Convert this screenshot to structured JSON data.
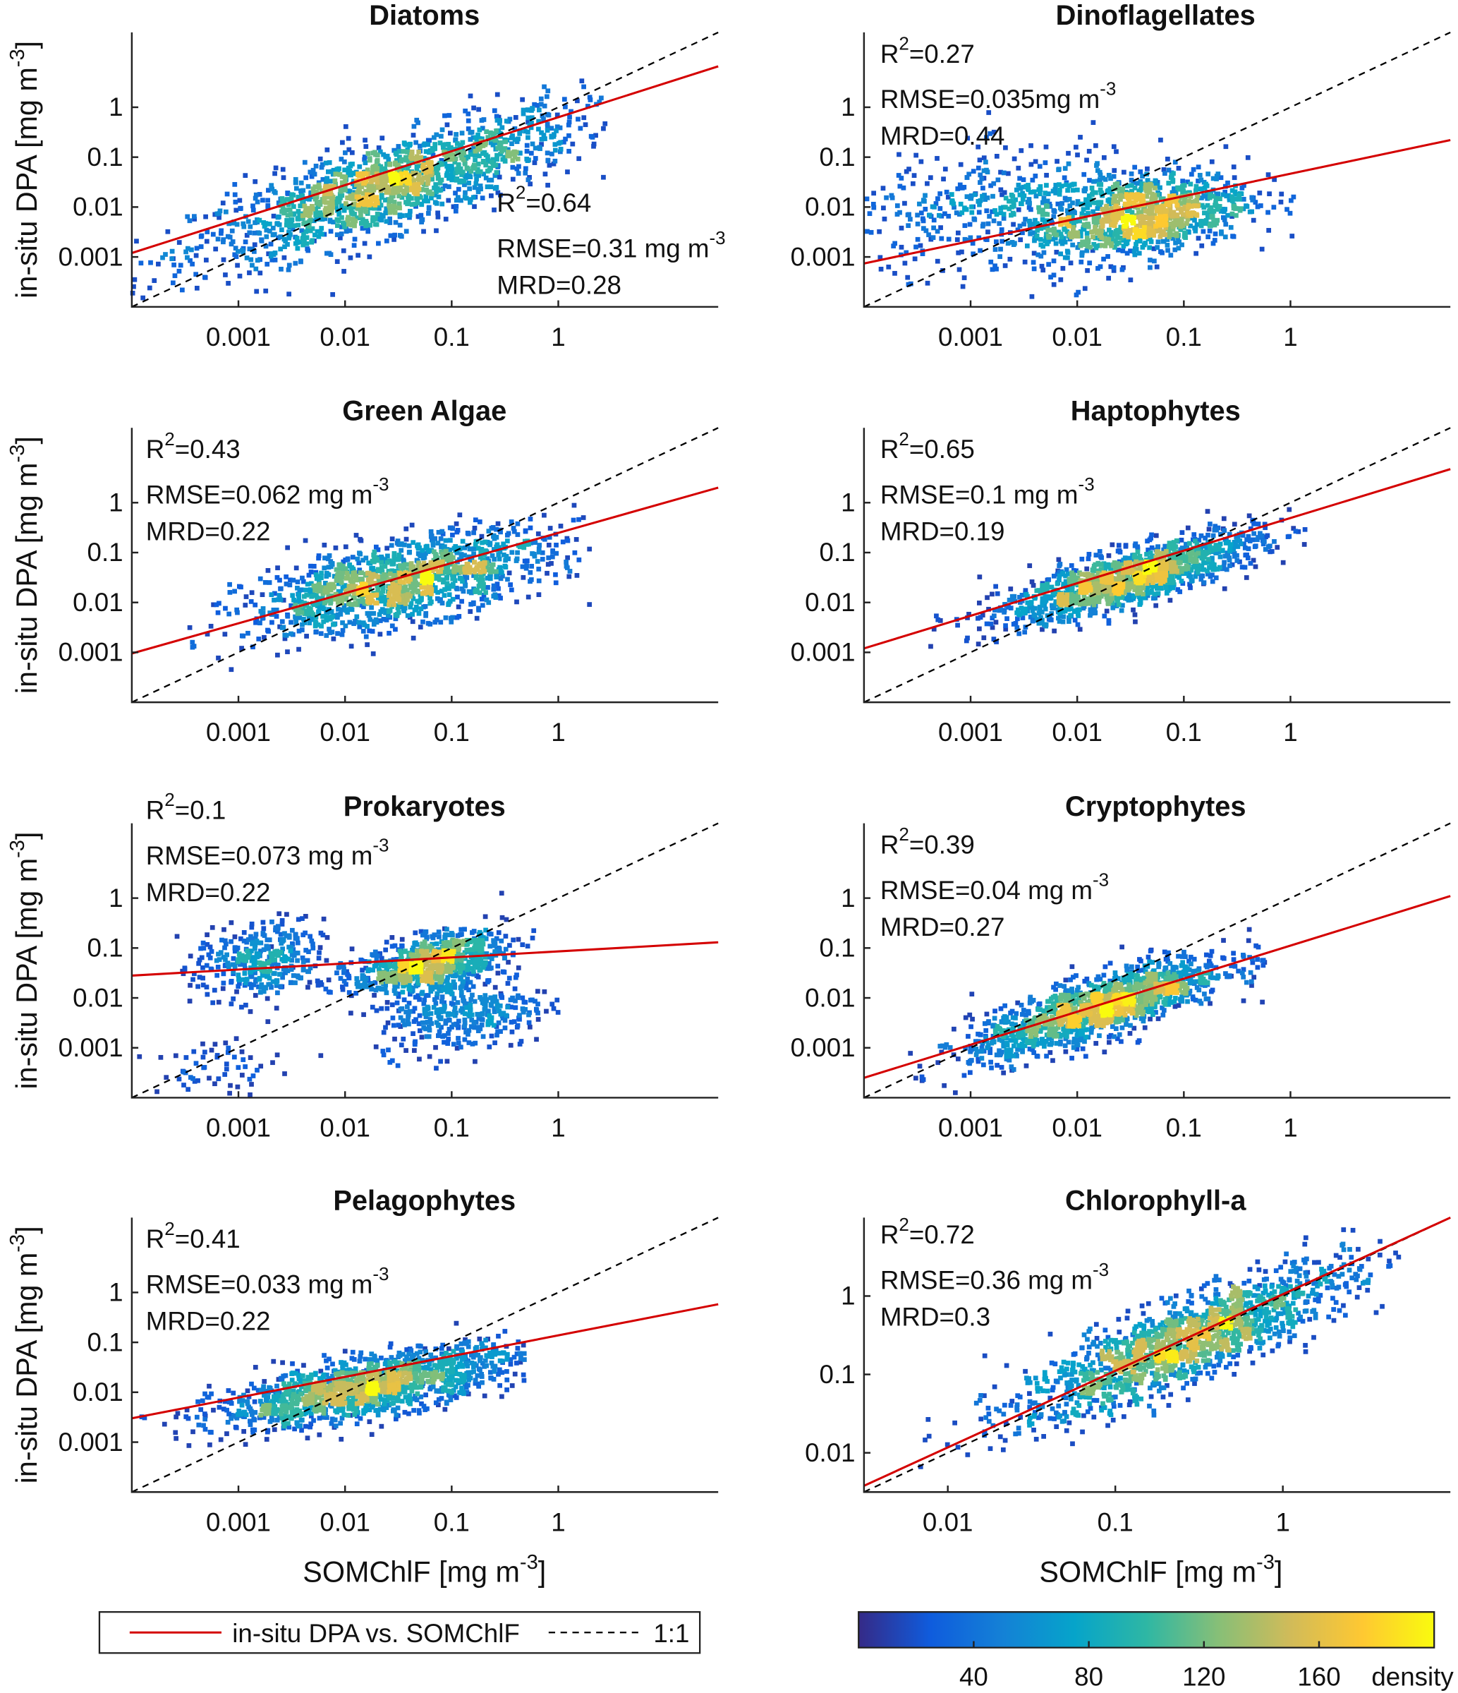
{
  "chart_data": {
    "type": "scatter",
    "panels": [
      {
        "title": "Diatoms",
        "r2": "0.64",
        "rmse": "0.31 mg m",
        "mrd": "0.28",
        "xlim": [
          0.0001,
          31.6
        ],
        "ylim": [
          0.0001,
          31.6
        ],
        "xticks": [
          "0.001",
          "0.01",
          "0.1",
          "1"
        ],
        "yticks": [
          "0.001",
          "0.01",
          "0.1",
          "1"
        ],
        "fit_line": {
          "x": [
            0.0001,
            31.6
          ],
          "y": [
            0.0012,
            6.6
          ]
        },
        "ylabel": "in-situ DPA [mg m",
        "xlabel": ""
      },
      {
        "title": "Dinoflagellates",
        "r2": "0.27",
        "rmse": "0.035mg m",
        "mrd": "0.44",
        "xlim": [
          0.0001,
          31.6
        ],
        "ylim": [
          0.0001,
          31.6
        ],
        "xticks": [
          "0.001",
          "0.01",
          "0.1",
          "1"
        ],
        "yticks": [
          "0.001",
          "0.01",
          "0.1",
          "1"
        ],
        "fit_line": {
          "x": [
            0.0001,
            31.6
          ],
          "y": [
            0.00074,
            0.22
          ]
        },
        "ylabel": "",
        "xlabel": ""
      },
      {
        "title": "Green Algae",
        "r2": "0.43",
        "rmse": "0.062 mg m",
        "mrd": "0.22",
        "xlim": [
          0.0001,
          31.6
        ],
        "ylim": [
          0.0001,
          31.6
        ],
        "xticks": [
          "0.001",
          "0.01",
          "0.1",
          "1"
        ],
        "yticks": [
          "0.001",
          "0.01",
          "0.1",
          "1"
        ],
        "fit_line": {
          "x": [
            0.0001,
            31.6
          ],
          "y": [
            0.00095,
            2.0
          ]
        },
        "ylabel": "in-situ DPA [mg m",
        "xlabel": ""
      },
      {
        "title": "Haptophytes",
        "r2": "0.65",
        "rmse": "0.1 mg m",
        "mrd": "0.19",
        "xlim": [
          0.0001,
          31.6
        ],
        "ylim": [
          0.0001,
          31.6
        ],
        "xticks": [
          "0.001",
          "0.01",
          "0.1",
          "1"
        ],
        "yticks": [
          "0.001",
          "0.01",
          "0.1",
          "1"
        ],
        "fit_line": {
          "x": [
            0.0001,
            31.6
          ],
          "y": [
            0.0012,
            4.7
          ]
        },
        "ylabel": "",
        "xlabel": ""
      },
      {
        "title": "Prokaryotes",
        "r2": "0.1",
        "rmse": "0.073 mg m",
        "mrd": "0.22",
        "xlim": [
          0.0001,
          31.6
        ],
        "ylim": [
          0.0001,
          31.6
        ],
        "xticks": [
          "0.001",
          "0.01",
          "0.1",
          "1"
        ],
        "yticks": [
          "0.001",
          "0.01",
          "0.1",
          "1"
        ],
        "fit_line": {
          "x": [
            0.0001,
            31.6
          ],
          "y": [
            0.028,
            0.13
          ]
        },
        "ylabel": "in-situ DPA [mg m",
        "xlabel": ""
      },
      {
        "title": "Cryptophytes",
        "r2": "0.39",
        "rmse": "0.04 mg m",
        "mrd": "0.27",
        "xlim": [
          0.0001,
          31.6
        ],
        "ylim": [
          0.0001,
          31.6
        ],
        "xticks": [
          "0.001",
          "0.01",
          "0.1",
          "1"
        ],
        "yticks": [
          "0.001",
          "0.01",
          "0.1",
          "1"
        ],
        "fit_line": {
          "x": [
            0.0001,
            31.6
          ],
          "y": [
            0.00025,
            1.1
          ]
        },
        "ylabel": "",
        "xlabel": ""
      },
      {
        "title": "Pelagophytes",
        "r2": "0.41",
        "rmse": "0.033 mg m",
        "mrd": "0.22",
        "xlim": [
          0.0001,
          31.6
        ],
        "ylim": [
          0.0001,
          31.6
        ],
        "xticks": [
          "0.001",
          "0.01",
          "0.1",
          "1"
        ],
        "yticks": [
          "0.001",
          "0.01",
          "0.1",
          "1"
        ],
        "fit_line": {
          "x": [
            0.0001,
            31.6
          ],
          "y": [
            0.003,
            0.58
          ]
        },
        "ylabel": "in-situ DPA [mg m",
        "xlabel": "SOMChlF [mg m"
      },
      {
        "title": "Chlorophyll-a",
        "r2": "0.72",
        "rmse": "0.36 mg m",
        "mrd": "0.3",
        "xlim": [
          0.00316,
          10
        ],
        "ylim": [
          0.00316,
          10
        ],
        "xticks": [
          "0.01",
          "0.1",
          "1"
        ],
        "yticks": [
          "0.01",
          "0.1",
          "1"
        ],
        "fit_line": {
          "x": [
            0.00316,
            10
          ],
          "y": [
            0.0038,
            10
          ]
        },
        "ylabel": "",
        "xlabel": "SOMChlF [mg m"
      }
    ],
    "unit_exponent": "-3",
    "r2_label": "R",
    "r2_sup": "2",
    "rmse_prefix": "RMSE=",
    "mrd_prefix": "MRD=",
    "scale": "log-log",
    "grid": false,
    "legend": {
      "placement": "bottom-left",
      "entries": [
        {
          "label": "in-situ DPA vs. SOMChlF",
          "color": "#d40000",
          "style": "solid"
        },
        {
          "label": "1:1",
          "color": "#000000",
          "style": "dashed"
        }
      ]
    },
    "colorbar": {
      "label": "density",
      "range": [
        0,
        200
      ],
      "ticks": [
        "40",
        "80",
        "120",
        "160"
      ],
      "colormap": "parula",
      "placement": "bottom-right"
    }
  }
}
